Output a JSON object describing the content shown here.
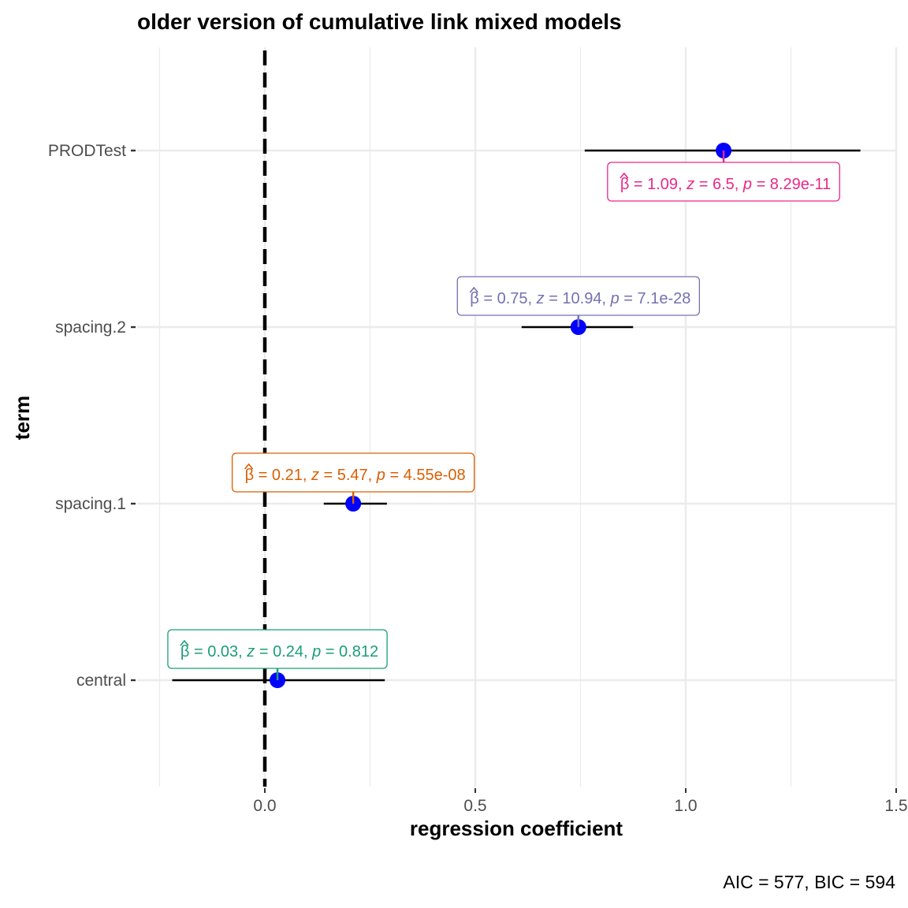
{
  "chart_data": {
    "type": "scatter",
    "title": "older version of cumulative link mixed models",
    "xlabel": "regression coefficient",
    "ylabel": "term",
    "caption": "AIC = 577, BIC = 594",
    "xlim": [
      -0.25,
      1.5
    ],
    "x_ticks": [
      0.0,
      0.5,
      1.0,
      1.5
    ],
    "x_tick_labels": [
      "0.0",
      "0.5",
      "1.0",
      "1.5"
    ],
    "reference_line": 0,
    "grid": true,
    "point_color": "#0000ff",
    "terms": [
      {
        "term": "central",
        "estimate": 0.03,
        "conf_low": -0.22,
        "conf_high": 0.285,
        "label": {
          "beta": "0.03",
          "z": "0.24",
          "p": "0.812"
        },
        "label_position": "above",
        "color": "#1b9e77"
      },
      {
        "term": "spacing.1",
        "estimate": 0.21,
        "conf_low": 0.14,
        "conf_high": 0.29,
        "label": {
          "beta": "0.21",
          "z": "5.47",
          "p": "4.55e-08"
        },
        "label_position": "above",
        "color": "#d95f02"
      },
      {
        "term": "spacing.2",
        "estimate": 0.745,
        "conf_low": 0.61,
        "conf_high": 0.875,
        "label": {
          "beta": "0.75",
          "z": "10.94",
          "p": "7.1e-28"
        },
        "label_position": "above",
        "color": "#7570b3"
      },
      {
        "term": "PRODTest",
        "estimate": 1.09,
        "conf_low": 0.76,
        "conf_high": 1.415,
        "label": {
          "beta": "1.09",
          "z": "6.5",
          "p": "8.29e-11"
        },
        "label_position": "below",
        "color": "#e7298a"
      }
    ]
  }
}
